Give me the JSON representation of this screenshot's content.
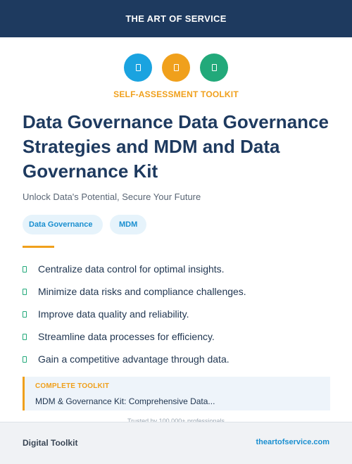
{
  "header": {
    "brand": "THE ART OF SERVICE"
  },
  "icons": [
    {
      "name": "document-icon",
      "color": "#1aa3e0"
    },
    {
      "name": "document-icon",
      "color": "#f0a01c"
    },
    {
      "name": "document-icon",
      "color": "#22a97a"
    }
  ],
  "kicker": "SELF-ASSESSMENT TOOLKIT",
  "title": "Data Governance Data Governance Strategies and MDM and Data Governance Kit",
  "subtitle": "Unlock Data's Potential, Secure Your Future",
  "tags": [
    "Data Governance",
    "MDM"
  ],
  "bullets": [
    "Centralize data control for optimal insights.",
    "Minimize data risks and compliance challenges.",
    "Improve data quality and reliability.",
    "Streamline data processes for efficiency.",
    "Gain a competitive advantage through data."
  ],
  "promo": {
    "label": "COMPLETE TOOLKIT",
    "text": "MDM & Governance Kit: Comprehensive Data..."
  },
  "trusted": "Trusted by 100,000+ professionals",
  "footer": {
    "left": "Digital Toolkit",
    "right": "theartofservice.com"
  },
  "colors": {
    "navy": "#1e3a5f",
    "orange": "#f0a01c",
    "blue": "#1aa3e0",
    "green": "#22a97a"
  }
}
